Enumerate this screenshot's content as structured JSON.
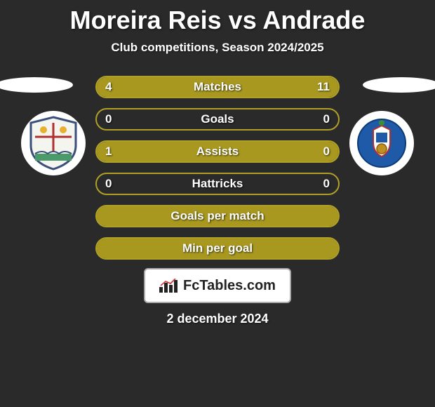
{
  "title": "Moreira Reis vs Andrade",
  "subtitle": "Club competitions, Season 2024/2025",
  "date": "2 december 2024",
  "footer_brand": "FcTables.com",
  "colors": {
    "bar_border": "#b0a028",
    "bar_fill": "#a89820",
    "bar_empty": "rgba(0,0,0,0)",
    "background": "#2a2a2a",
    "text": "#ffffff"
  },
  "left_badge": {
    "bg": "#ffffff",
    "shield_colors": [
      "#3a4f7a",
      "#b03030",
      "#e8b030",
      "#4a9a6a"
    ]
  },
  "right_badge": {
    "bg": "#ffffff",
    "shield_color": "#1e5aa8"
  },
  "bars": [
    {
      "label": "Matches",
      "left_val": "4",
      "right_val": "11",
      "left_pct": 27,
      "right_pct": 73
    },
    {
      "label": "Goals",
      "left_val": "0",
      "right_val": "0",
      "left_pct": 0,
      "right_pct": 0
    },
    {
      "label": "Assists",
      "left_val": "1",
      "right_val": "0",
      "left_pct": 100,
      "right_pct": 0
    },
    {
      "label": "Hattricks",
      "left_val": "0",
      "right_val": "0",
      "left_pct": 0,
      "right_pct": 0
    },
    {
      "label": "Goals per match",
      "left_val": "",
      "right_val": "",
      "left_pct": 100,
      "right_pct": 100
    },
    {
      "label": "Min per goal",
      "left_val": "",
      "right_val": "",
      "left_pct": 100,
      "right_pct": 100
    }
  ]
}
